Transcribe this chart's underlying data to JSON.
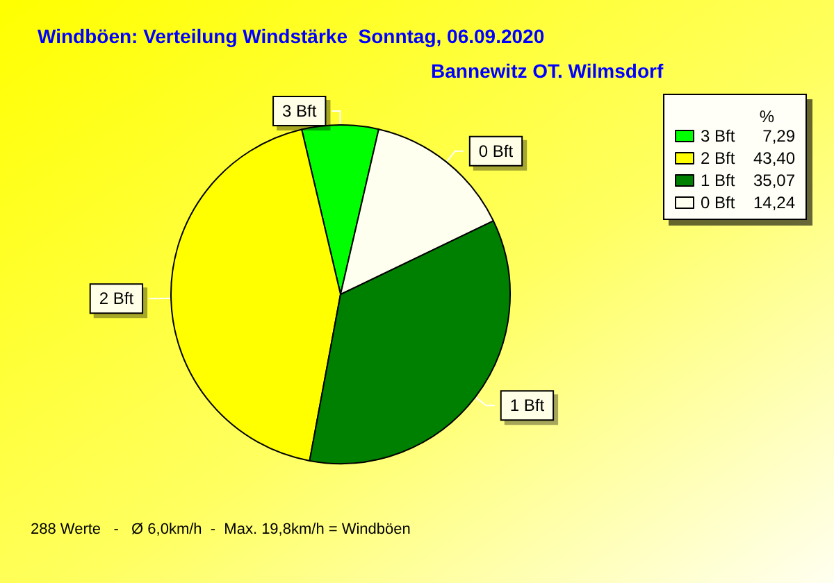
{
  "chart_data": {
    "type": "pie",
    "title": "Windböen: Verteilung Windstärke  Sonntag, 06.09.2020",
    "subtitle": "Bannewitz OT. Wilmsdorf",
    "categories": [
      "3 Bft",
      "2 Bft",
      "1 Bft",
      "0 Bft"
    ],
    "values": [
      7.29,
      43.4,
      35.07,
      14.24
    ],
    "value_labels": [
      "7,29",
      "43,40",
      "35,07",
      "14,24"
    ],
    "colors": [
      "#00ff00",
      "#ffff00",
      "#008000",
      "#fffff0"
    ],
    "legend": "top right",
    "legend_title": "%",
    "annotations": [
      "288 Werte   -   Ø 6,0km/h  -  Max. 19,8km/h = Windböen"
    ]
  }
}
